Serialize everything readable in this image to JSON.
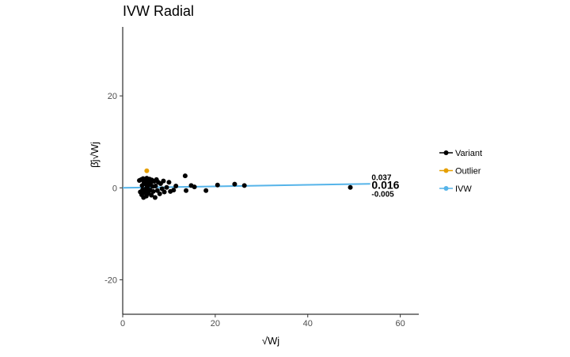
{
  "chart_data": {
    "type": "scatter",
    "title": "IVW Radial",
    "xlabel": "√Wj",
    "ylabel": "β̂j√Wj",
    "xlim": [
      0,
      64
    ],
    "ylim": [
      -27.5,
      35
    ],
    "x_ticks": [
      0,
      20,
      40,
      60
    ],
    "y_ticks": [
      -20,
      0,
      20
    ],
    "grid": false,
    "legend_position": "right",
    "legend": [
      {
        "label": "Variant",
        "color": "#000000"
      },
      {
        "label": "Outlier",
        "color": "#E69F00"
      },
      {
        "label": "IVW",
        "color": "#56B4E9"
      }
    ],
    "series": [
      {
        "name": "Variant",
        "color": "#000000",
        "points": [
          {
            "x": 3.6,
            "y": 1.6
          },
          {
            "x": 3.8,
            "y": -0.9
          },
          {
            "x": 4.0,
            "y": 1.8
          },
          {
            "x": 4.1,
            "y": -1.5
          },
          {
            "x": 4.2,
            "y": 0.5
          },
          {
            "x": 4.3,
            "y": -0.4
          },
          {
            "x": 4.4,
            "y": 2.0
          },
          {
            "x": 4.5,
            "y": -2.1
          },
          {
            "x": 4.6,
            "y": 1.1
          },
          {
            "x": 4.7,
            "y": -1.0
          },
          {
            "x": 4.8,
            "y": 1.5
          },
          {
            "x": 4.9,
            "y": -0.3
          },
          {
            "x": 5.0,
            "y": 0.8
          },
          {
            "x": 5.1,
            "y": -1.8
          },
          {
            "x": 5.2,
            "y": 2.1
          },
          {
            "x": 5.3,
            "y": 0.2
          },
          {
            "x": 5.4,
            "y": -0.7
          },
          {
            "x": 5.5,
            "y": 1.3
          },
          {
            "x": 5.6,
            "y": -1.2
          },
          {
            "x": 5.7,
            "y": 0.6
          },
          {
            "x": 5.8,
            "y": 1.9
          },
          {
            "x": 5.9,
            "y": -0.5
          },
          {
            "x": 6.0,
            "y": 1.0
          },
          {
            "x": 6.2,
            "y": -1.6
          },
          {
            "x": 6.3,
            "y": 1.7
          },
          {
            "x": 6.5,
            "y": 0.3
          },
          {
            "x": 6.6,
            "y": -0.8
          },
          {
            "x": 6.8,
            "y": 1.4
          },
          {
            "x": 7.0,
            "y": -2.1
          },
          {
            "x": 7.1,
            "y": 0.4
          },
          {
            "x": 7.3,
            "y": 1.8
          },
          {
            "x": 7.5,
            "y": -0.6
          },
          {
            "x": 7.7,
            "y": 1.2
          },
          {
            "x": 8.0,
            "y": -1.3
          },
          {
            "x": 8.2,
            "y": 0.9
          },
          {
            "x": 8.5,
            "y": -0.2
          },
          {
            "x": 8.8,
            "y": 1.5
          },
          {
            "x": 9.0,
            "y": -0.9
          },
          {
            "x": 9.5,
            "y": 0.1
          },
          {
            "x": 10.0,
            "y": 1.2
          },
          {
            "x": 10.3,
            "y": -0.8
          },
          {
            "x": 11.0,
            "y": -0.5
          },
          {
            "x": 11.5,
            "y": 0.4
          },
          {
            "x": 13.5,
            "y": 2.6
          },
          {
            "x": 13.7,
            "y": -0.6
          },
          {
            "x": 14.8,
            "y": 0.5
          },
          {
            "x": 15.5,
            "y": 0.2
          },
          {
            "x": 18.0,
            "y": -0.6
          },
          {
            "x": 20.5,
            "y": 0.6
          },
          {
            "x": 24.2,
            "y": 0.8
          },
          {
            "x": 26.3,
            "y": 0.5
          },
          {
            "x": 49.2,
            "y": 0.1
          }
        ]
      },
      {
        "name": "Outlier",
        "color": "#E69F00",
        "points": [
          {
            "x": 5.2,
            "y": 3.7
          }
        ]
      }
    ],
    "ivw_fit": {
      "name": "IVW",
      "color": "#56B4E9",
      "slope": 0.016,
      "x_range": [
        0,
        53.5
      ]
    },
    "annotations": [
      {
        "text": "0.037",
        "x": 53.8,
        "y": 2.3,
        "size": "small"
      },
      {
        "text": "0.016",
        "x": 53.8,
        "y": 0.6,
        "size": "large"
      },
      {
        "text": "-0.005",
        "x": 53.8,
        "y": -1.4,
        "size": "small"
      }
    ]
  }
}
